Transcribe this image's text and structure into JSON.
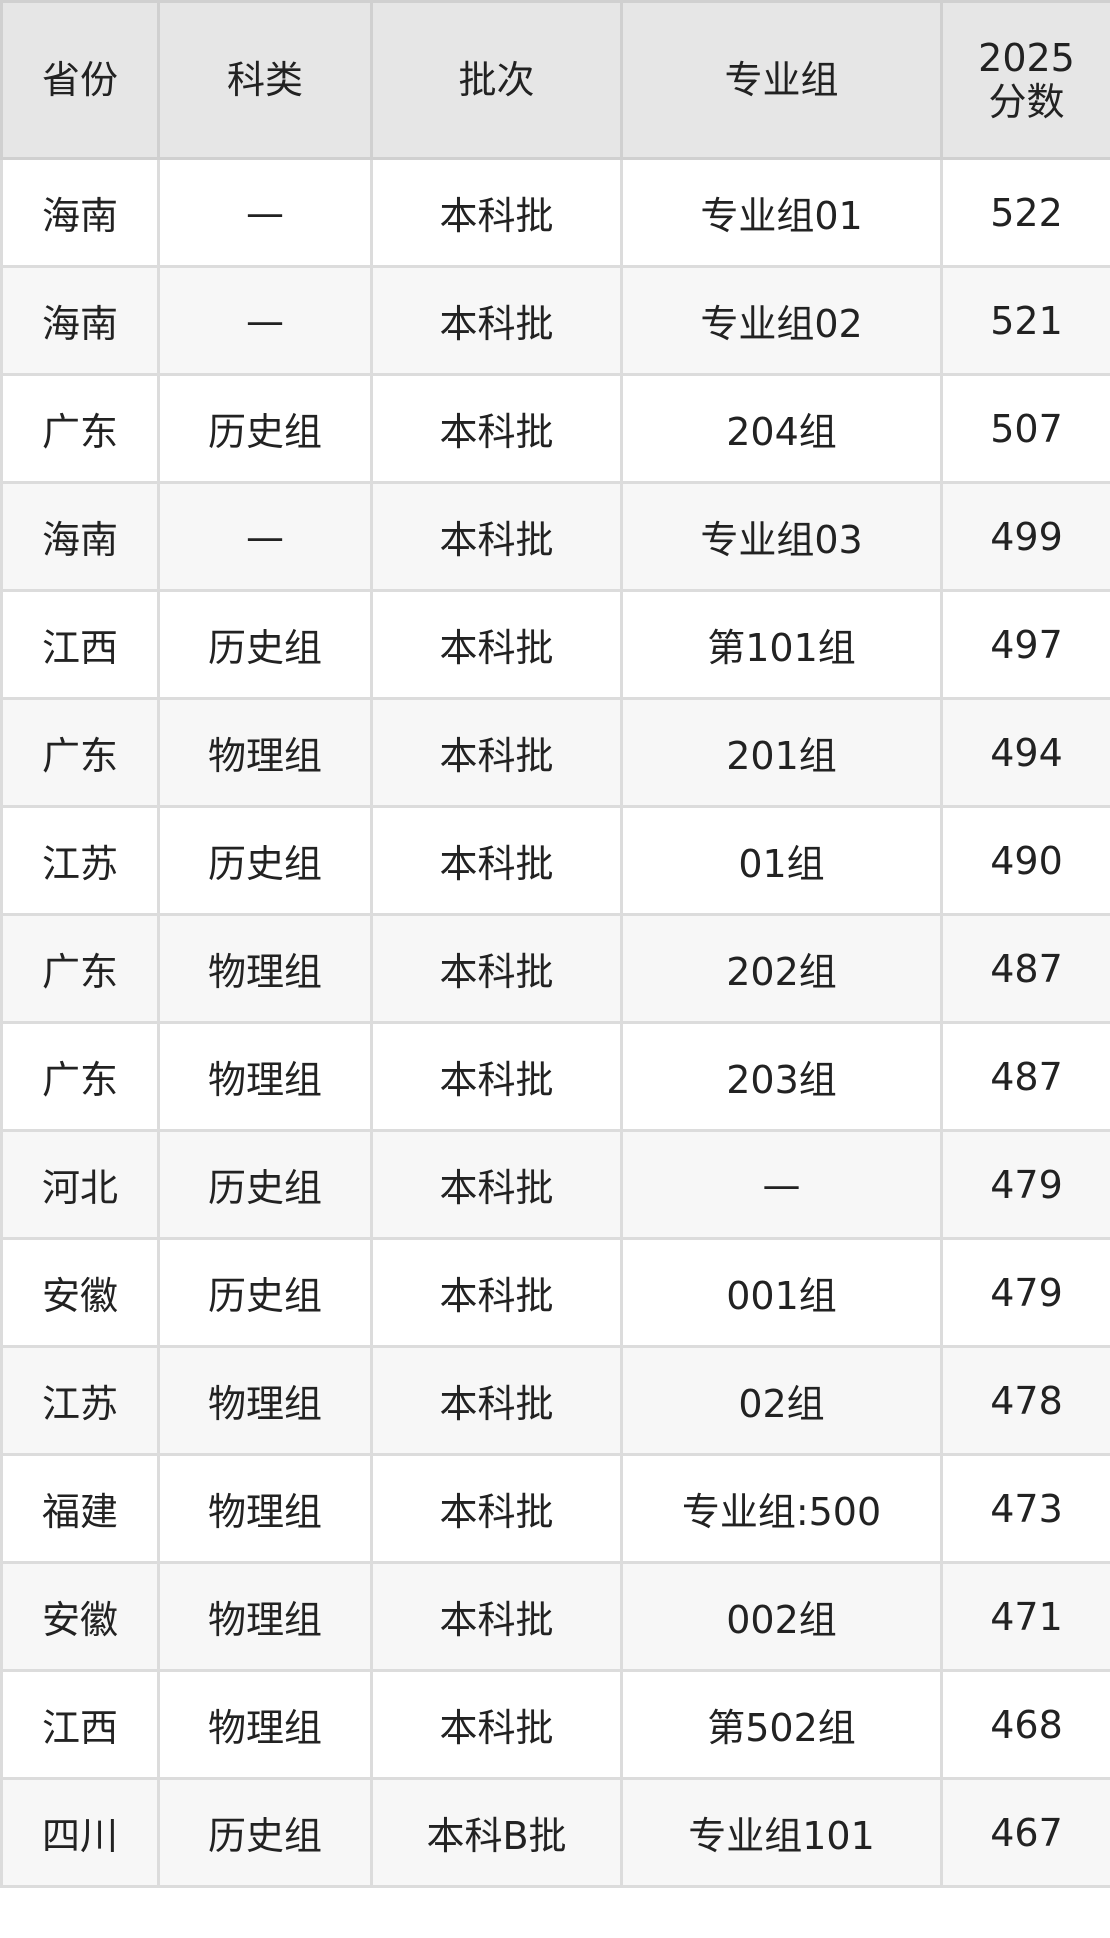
{
  "table": {
    "headers": [
      "省份",
      "科类",
      "批次",
      "专业组",
      "2025\n分数"
    ],
    "header_year": "2025",
    "header_score": "分数",
    "rows": [
      [
        "海南",
        "—",
        "本科批",
        "专业组01",
        "522"
      ],
      [
        "海南",
        "—",
        "本科批",
        "专业组02",
        "521"
      ],
      [
        "广东",
        "历史组",
        "本科批",
        "204组",
        "507"
      ],
      [
        "海南",
        "—",
        "本科批",
        "专业组03",
        "499"
      ],
      [
        "江西",
        "历史组",
        "本科批",
        "第101组",
        "497"
      ],
      [
        "广东",
        "物理组",
        "本科批",
        "201组",
        "494"
      ],
      [
        "江苏",
        "历史组",
        "本科批",
        "01组",
        "490"
      ],
      [
        "广东",
        "物理组",
        "本科批",
        "202组",
        "487"
      ],
      [
        "广东",
        "物理组",
        "本科批",
        "203组",
        "487"
      ],
      [
        "河北",
        "历史组",
        "本科批",
        "—",
        "479"
      ],
      [
        "安徽",
        "历史组",
        "本科批",
        "001组",
        "479"
      ],
      [
        "江苏",
        "物理组",
        "本科批",
        "02组",
        "478"
      ],
      [
        "福建",
        "物理组",
        "本科批",
        "专业组:500",
        "473"
      ],
      [
        "安徽",
        "物理组",
        "本科批",
        "002组",
        "471"
      ],
      [
        "江西",
        "物理组",
        "本科批",
        "第502组",
        "468"
      ],
      [
        "四川",
        "历史组",
        "本科B批",
        "专业组101",
        "467"
      ]
    ]
  }
}
